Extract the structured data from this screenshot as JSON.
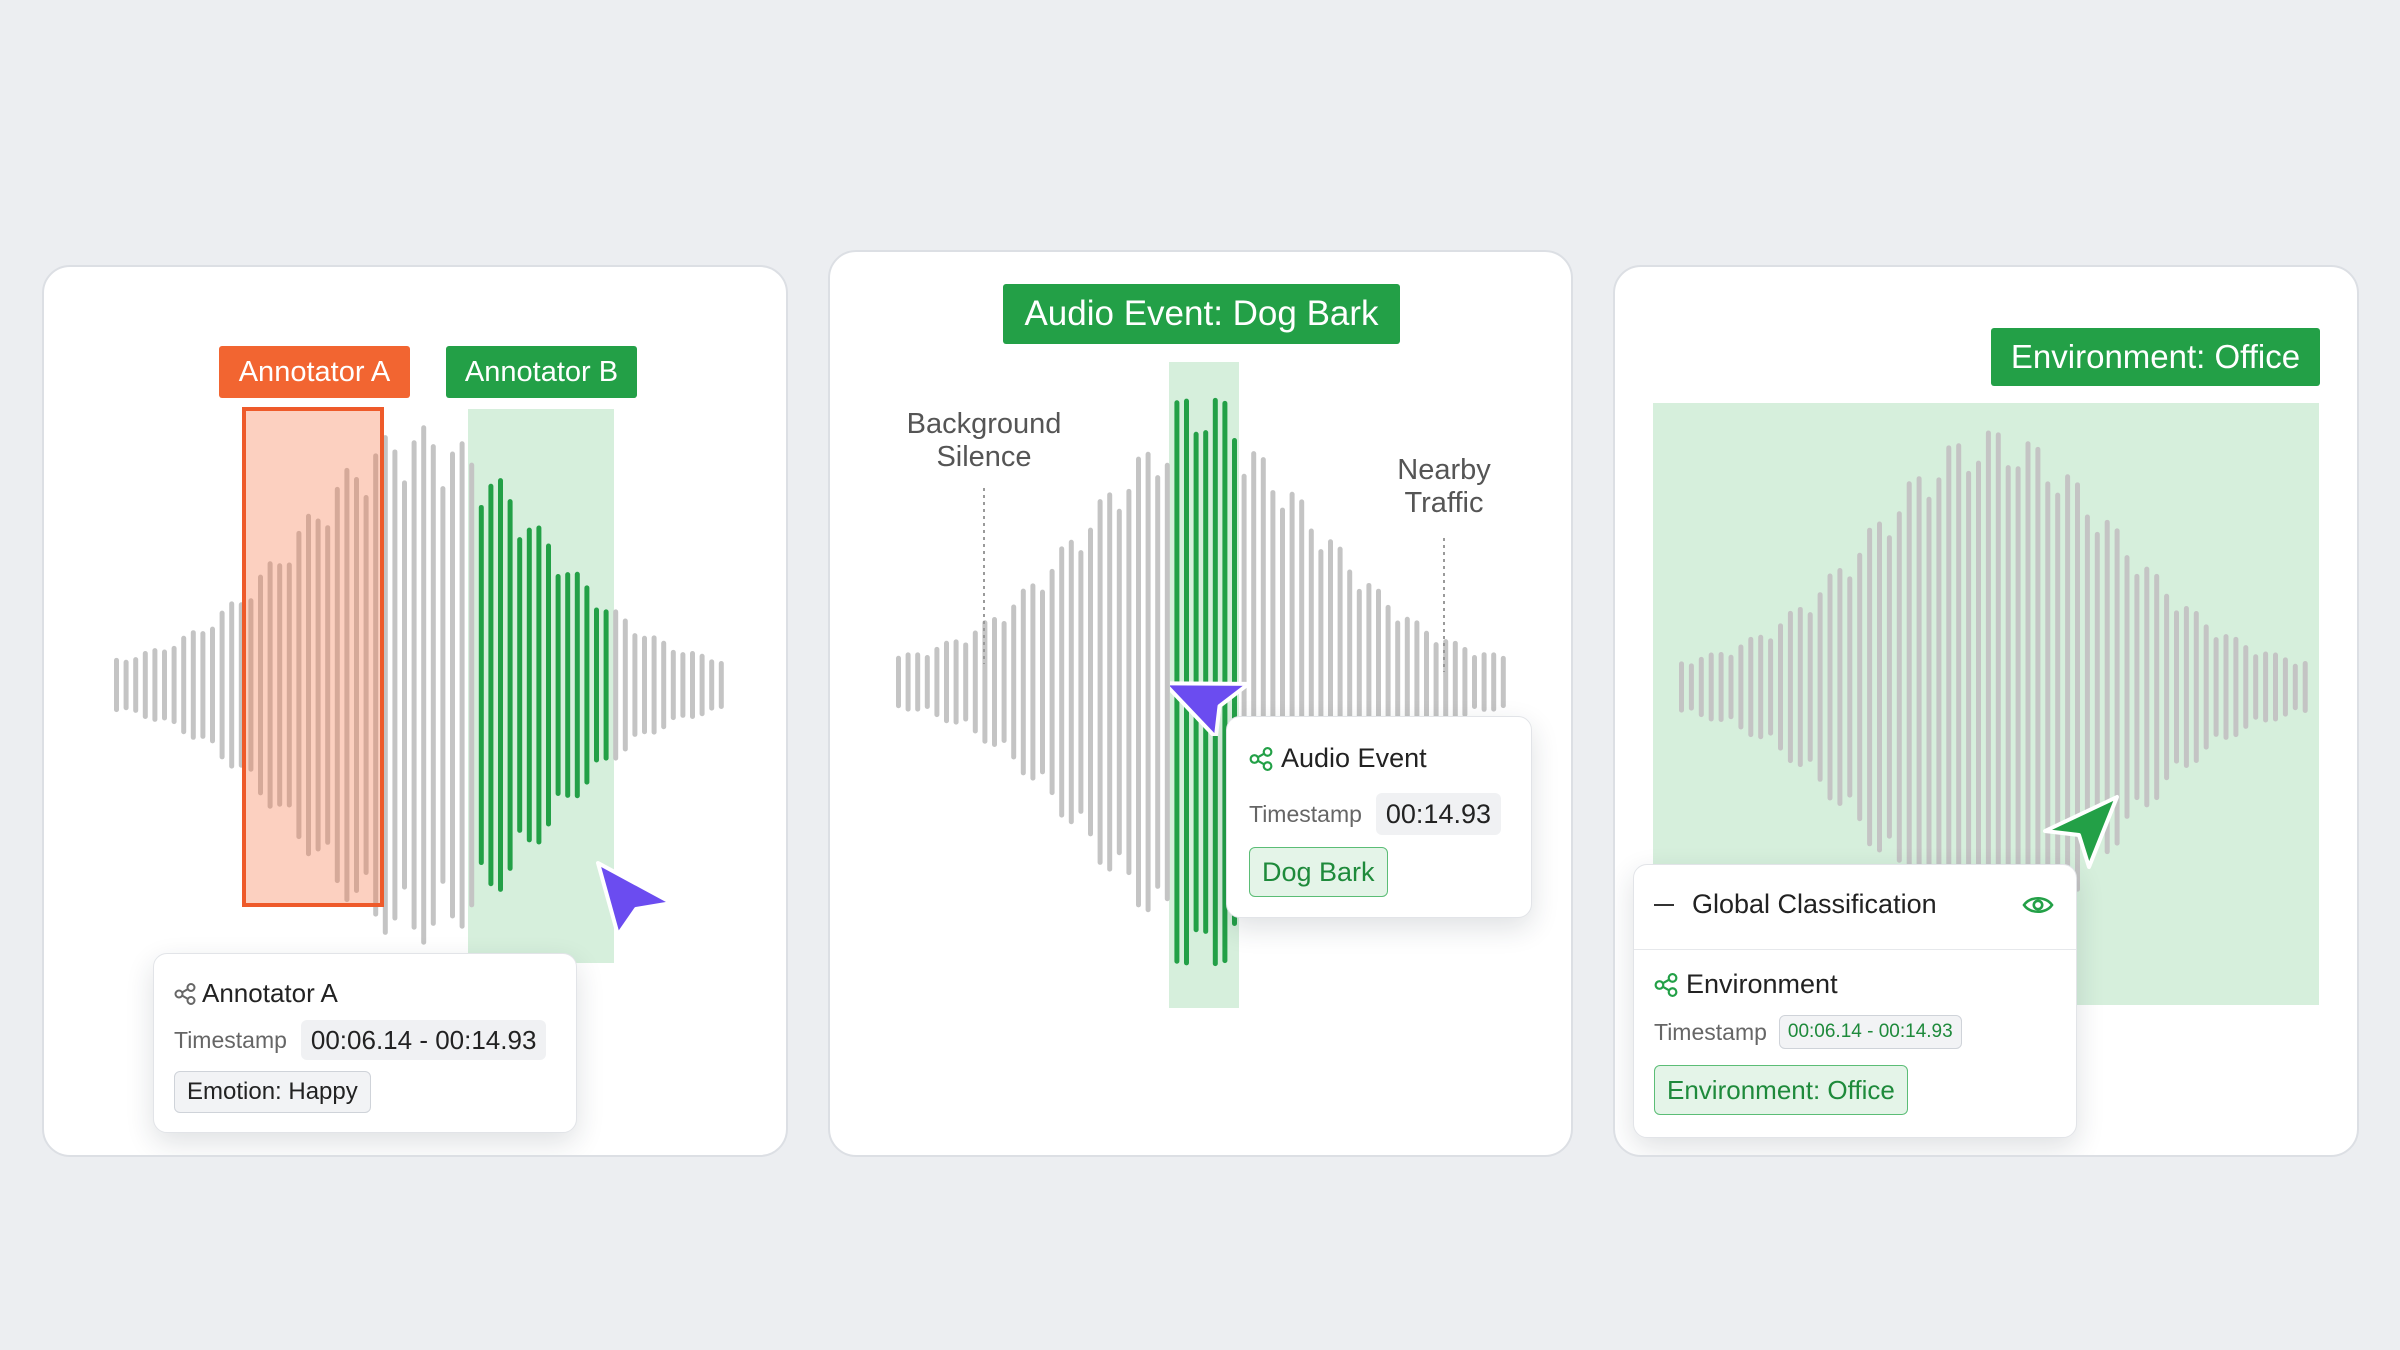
{
  "panel_a": {
    "tag_a": "Annotator A",
    "tag_b": "Annotator B",
    "card": {
      "title": "Annotator A",
      "timestamp_label": "Timestamp",
      "timestamp_value": "00:06.14 - 00:14.93",
      "emotion": "Emotion: Happy"
    }
  },
  "panel_b": {
    "tag": "Audio Event: Dog Bark",
    "left_note": "Background\nSilence",
    "right_note": "Nearby\nTraffic",
    "card": {
      "title": "Audio Event",
      "timestamp_label": "Timestamp",
      "timestamp_value": "00:14.93",
      "label": "Dog Bark"
    }
  },
  "panel_c": {
    "tag": "Environment: Office",
    "card": {
      "header": "Global Classification",
      "title": "Environment",
      "timestamp_label": "Timestamp",
      "timestamp_value": "00:06.14 - 00:14.93",
      "label": "Environment: Office"
    }
  },
  "colors": {
    "orange": "#f26531",
    "green": "#23a047",
    "light_green": "#d6efdc",
    "wave_gray": "#c6c6c6",
    "cursor_purple": "#6b4cf0"
  },
  "icons": {
    "card_title_icon": "share-nodes-icon",
    "collapse_icon": "minus-icon",
    "visibility_icon": "eye-icon",
    "pointer": "cursor-arrow-icon"
  }
}
